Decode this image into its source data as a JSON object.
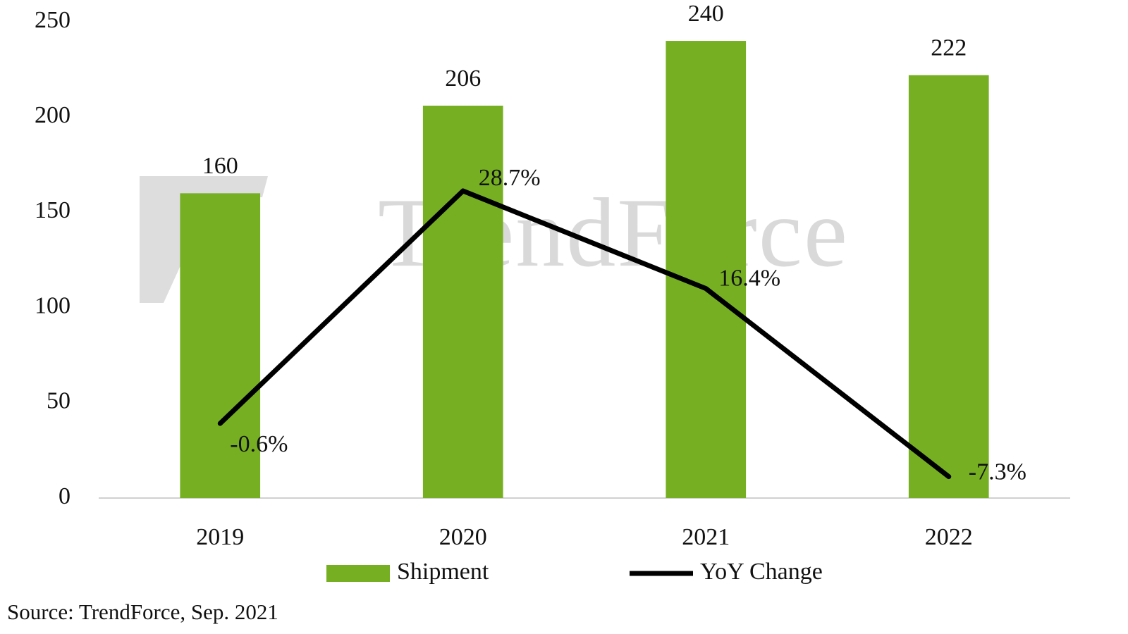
{
  "chart_data": {
    "type": "bar",
    "watermark": "TrendForce",
    "categories": [
      "2019",
      "2020",
      "2021",
      "2022"
    ],
    "series": [
      {
        "name": "Shipment",
        "type": "bar",
        "color": "#76b022",
        "values": [
          160,
          206,
          240,
          222
        ]
      },
      {
        "name": "YoY Change",
        "type": "line",
        "axis": "y2",
        "color": "#000000",
        "values": [
          -0.6,
          28.7,
          16.4,
          -7.3
        ],
        "value_labels": [
          "-0.6%",
          "28.7%",
          "16.4%",
          "-7.3%"
        ]
      }
    ],
    "ylim": [
      0,
      250
    ],
    "yticks": [
      0,
      50,
      100,
      150,
      200,
      250
    ],
    "y2lim": [
      -10,
      50
    ],
    "grid": false,
    "legend": "bottom",
    "source": "Source: TrendForce, Sep. 2021"
  }
}
